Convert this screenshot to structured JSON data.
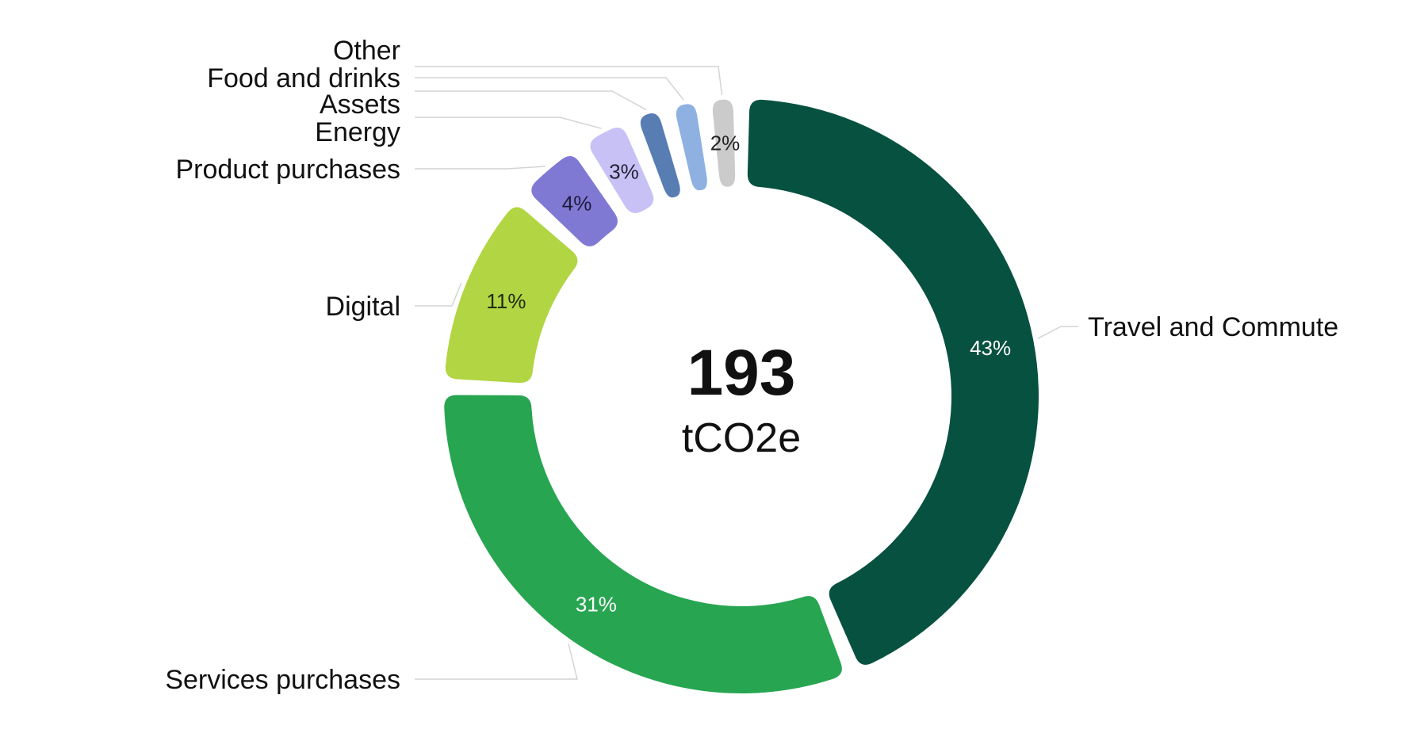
{
  "chart_data": {
    "type": "pie",
    "variant": "donut",
    "center": {
      "value": "193",
      "unit": "tCO2e"
    },
    "slices": [
      {
        "name": "Travel and Commute",
        "value": 43,
        "label": "43%",
        "color": "#075140",
        "label_color": "#ffffff"
      },
      {
        "name": "Services purchases",
        "value": 31,
        "label": "31%",
        "color": "#27a551",
        "label_color": "#ffffff"
      },
      {
        "name": "Digital",
        "value": 11,
        "label": "11%",
        "color": "#b1d543",
        "label_color": "#1e2a12"
      },
      {
        "name": "Product purchases",
        "value": 4,
        "label": "4%",
        "color": "#8079d4",
        "label_color": "#1c1c3a"
      },
      {
        "name": "Energy",
        "value": 3,
        "label": "3%",
        "color": "#c7c1f6",
        "label_color": "#222233"
      },
      {
        "name": "Assets",
        "value": 2,
        "label": "",
        "color": "#577db3",
        "label_color": "#ffffff"
      },
      {
        "name": "Food and drinks",
        "value": 2,
        "label": "",
        "color": "#8eb1e2",
        "label_color": "#ffffff"
      },
      {
        "name": "Other",
        "value": 2,
        "label": "2%",
        "color": "#cbcbcb",
        "label_color": "#222222"
      }
    ],
    "legend": "leader-line labels around the ring"
  }
}
